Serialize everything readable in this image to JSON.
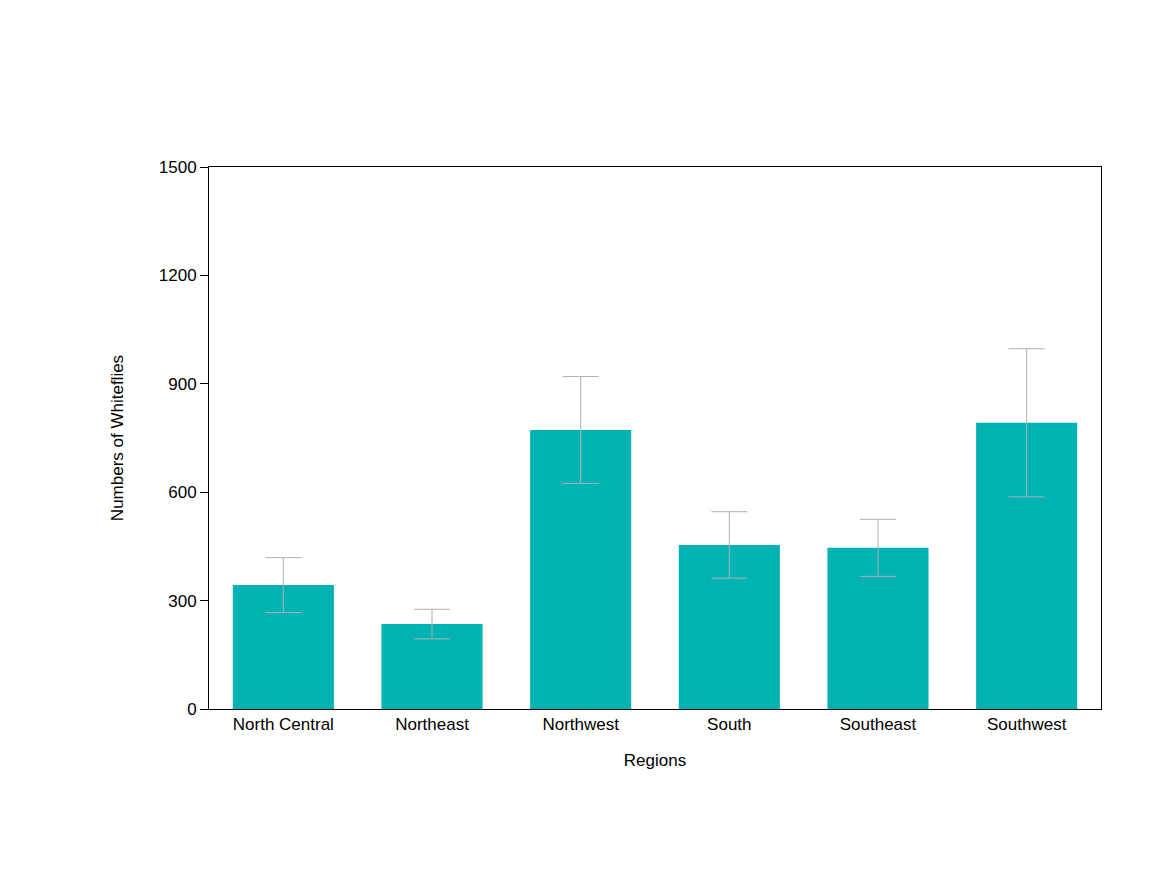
{
  "chart_data": {
    "type": "bar",
    "x_label": "Regions",
    "y_label": "Numbers of Whiteflies",
    "categories": [
      "North Central",
      "Northeast",
      "Northwest",
      "South",
      "Southeast",
      "Southwest"
    ],
    "values": [
      343,
      235,
      772,
      454,
      446,
      792
    ],
    "errors": [
      76,
      41,
      148,
      92,
      79,
      205
    ],
    "color": "#00b2b2",
    "ylim": [
      0,
      1500
    ],
    "yticks": [
      0,
      300,
      600,
      900,
      1200,
      1500
    ],
    "grid": false
  }
}
